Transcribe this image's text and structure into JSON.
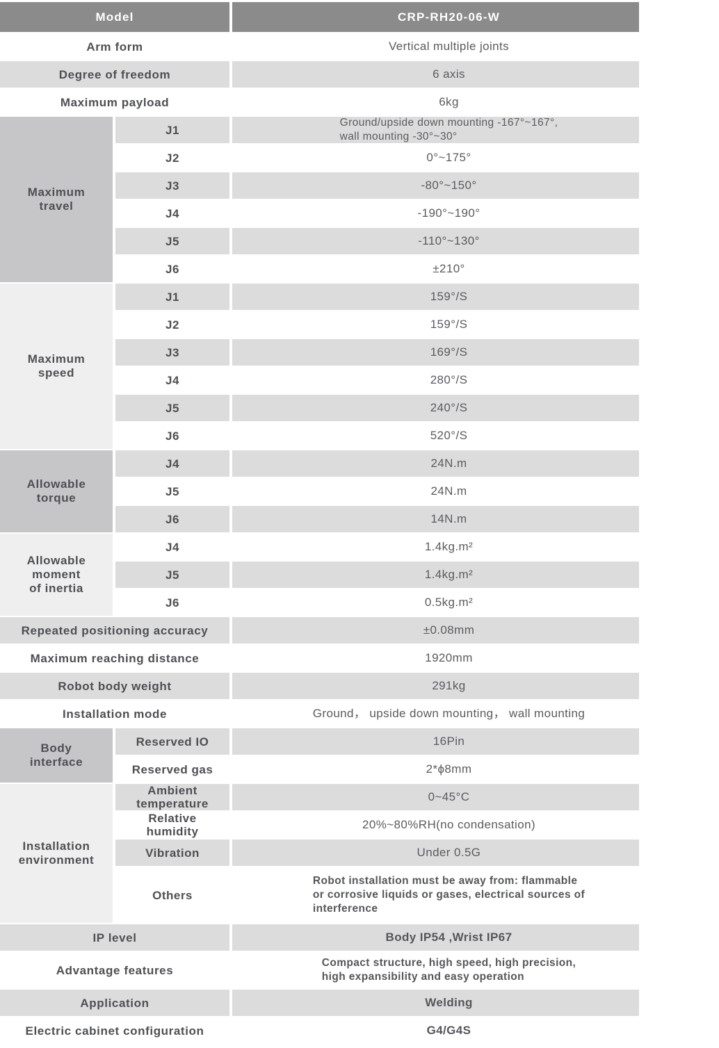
{
  "colors": {
    "header_bg": "#8b8b8b",
    "header_text": "#ffffff",
    "row_gray": "#dcdcdd",
    "group_medium": "#c6c6c8",
    "group_light": "#efefef",
    "label_text": "#4e4f53",
    "value_text": "#5a5b5f"
  },
  "table": {
    "header": {
      "label": "Model",
      "value": "CRP-RH20-06-W"
    },
    "sections": [
      {
        "type": "rows",
        "rows": [
          {
            "label": "Arm form",
            "value": "Vertical multiple joints",
            "shade": "w"
          },
          {
            "label": "Degree of freedom",
            "value": "6 axis",
            "shade": "g"
          },
          {
            "label": "Maximum payload",
            "value": "6kg",
            "shade": "w"
          }
        ]
      },
      {
        "type": "group",
        "label": "Maximum\ntravel",
        "shade": "medium",
        "rows": [
          {
            "label": "J1",
            "value": "Ground/upside down mounting -167°~167°,\nwall mounting -30°~30°",
            "shade": "g"
          },
          {
            "label": "J2",
            "value": "0°~175°",
            "shade": "w"
          },
          {
            "label": "J3",
            "value": "-80°~150°",
            "shade": "g"
          },
          {
            "label": "J4",
            "value": "-190°~190°",
            "shade": "w"
          },
          {
            "label": "J5",
            "value": "-110°~130°",
            "shade": "g"
          },
          {
            "label": "J6",
            "value": "±210°",
            "shade": "w"
          }
        ]
      },
      {
        "type": "group",
        "label": "Maximum\nspeed",
        "shade": "light",
        "rows": [
          {
            "label": "J1",
            "value": "159°/S",
            "shade": "g"
          },
          {
            "label": "J2",
            "value": "159°/S",
            "shade": "w"
          },
          {
            "label": "J3",
            "value": "169°/S",
            "shade": "g"
          },
          {
            "label": "J4",
            "value": "280°/S",
            "shade": "w"
          },
          {
            "label": "J5",
            "value": "240°/S",
            "shade": "g"
          },
          {
            "label": "J6",
            "value": "520°/S",
            "shade": "w"
          }
        ]
      },
      {
        "type": "group",
        "label": "Allowable\ntorque",
        "shade": "medium",
        "rows": [
          {
            "label": "J4",
            "value": "24N.m",
            "shade": "g"
          },
          {
            "label": "J5",
            "value": "24N.m",
            "shade": "w"
          },
          {
            "label": "J6",
            "value": "14N.m",
            "shade": "g"
          }
        ]
      },
      {
        "type": "group",
        "label": "Allowable\nmoment\nof inertia",
        "shade": "light",
        "rows": [
          {
            "label": "J4",
            "value": "1.4kg.m²",
            "shade": "w"
          },
          {
            "label": "J5",
            "value": "1.4kg.m²",
            "shade": "g"
          },
          {
            "label": "J6",
            "value": "0.5kg.m²",
            "shade": "w"
          }
        ]
      },
      {
        "type": "rows",
        "rows": [
          {
            "label": "Repeated positioning accuracy",
            "value": "±0.08mm",
            "shade": "g"
          },
          {
            "label": "Maximum reaching distance",
            "value": "1920mm",
            "shade": "w"
          },
          {
            "label": "Robot body weight",
            "value": "291kg",
            "shade": "g"
          },
          {
            "label": "Installation mode",
            "value": "Ground， upside down mounting， wall mounting",
            "shade": "w"
          }
        ]
      },
      {
        "type": "group",
        "label": "Body\ninterface",
        "shade": "medium",
        "rows": [
          {
            "label": "Reserved IO",
            "value": "16Pin",
            "shade": "g"
          },
          {
            "label": "Reserved gas",
            "value": "2*ϕ8mm",
            "shade": "w"
          }
        ]
      },
      {
        "type": "group",
        "label": "Installation\nenvironment",
        "shade": "light",
        "rows": [
          {
            "label": "Ambient\ntemperature",
            "value": "0~45°C",
            "shade": "g"
          },
          {
            "label": "Relative\nhumidity",
            "value": "20%~80%RH(no condensation)",
            "shade": "w"
          },
          {
            "label": "Vibration",
            "value": "Under 0.5G",
            "shade": "g"
          },
          {
            "label": "Others",
            "value": "Robot installation must be away from: flammable\nor corrosive liquids or gases, electrical sources of\ninterference",
            "shade": "w",
            "h": 80,
            "em": true
          }
        ]
      },
      {
        "type": "rows",
        "rows": [
          {
            "label": "IP level",
            "value": "Body IP54 ,Wrist IP67",
            "shade": "g",
            "em": true
          },
          {
            "label": "Advantage features",
            "value": "Compact structure, high speed, high precision,\nhigh expansibility and easy operation",
            "shade": "w",
            "h": 52,
            "em": true
          },
          {
            "label": "Application",
            "value": "Welding",
            "shade": "g",
            "em": true
          },
          {
            "label": "Electric cabinet configuration",
            "value": "G4/G4S",
            "shade": "w",
            "em": true
          }
        ]
      }
    ]
  }
}
